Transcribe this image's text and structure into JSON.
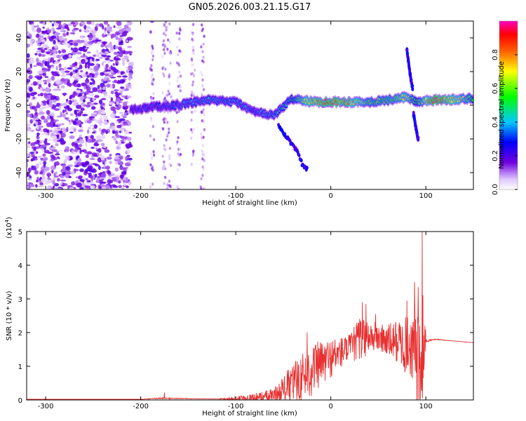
{
  "title": "GN05.2026.003.21.15.G17",
  "chart_data": [
    {
      "type": "heatmap",
      "name": "spectrogram",
      "xlabel": "Height of straight line (km)",
      "ylabel": "Frequency (Hz)",
      "xlim": [
        -320,
        150
      ],
      "ylim": [
        -50,
        50
      ],
      "xticks": [
        -300,
        -200,
        -100,
        0,
        100
      ],
      "yticks": [
        -40,
        -20,
        0,
        20,
        40
      ],
      "colorbar": {
        "label": "Normalized spectral amplitude",
        "range": [
          0.0,
          1.0
        ],
        "ticks": [
          0.0,
          0.2,
          0.4,
          0.6,
          0.8
        ],
        "tick_labels": [
          "0.0",
          "0.2",
          "0.4",
          "0.6",
          "0.8"
        ],
        "colors": [
          "#ffffff",
          "#7000e0",
          "#0000ff",
          "#00c0ff",
          "#00ff00",
          "#ffff00",
          "#ff6000",
          "#ff0000",
          "#ff00c0"
        ]
      },
      "ridge": {
        "x": [
          -210,
          -190,
          -160,
          -130,
          -100,
          -80,
          -60,
          -40,
          -20,
          0,
          20,
          40,
          60,
          80,
          90,
          110,
          150
        ],
        "freq": [
          -3,
          -1,
          0,
          3,
          2,
          -4,
          -6,
          4,
          2,
          2,
          2,
          2,
          3,
          5,
          2,
          3,
          4
        ],
        "amplitude": [
          0.3,
          0.3,
          0.35,
          0.4,
          0.4,
          0.35,
          0.4,
          0.5,
          0.8,
          0.9,
          0.8,
          0.6,
          0.6,
          0.7,
          0.5,
          0.95,
          0.55
        ]
      },
      "branches": [
        {
          "x": [
            -55,
            -45,
            -35,
            -30,
            -25
          ],
          "freq": [
            -12,
            -20,
            -28,
            -35,
            -38
          ]
        },
        {
          "x": [
            80,
            83,
            86
          ],
          "freq": [
            33,
            20,
            10
          ]
        },
        {
          "x": [
            87,
            90,
            92
          ],
          "freq": [
            -5,
            -15,
            -20
          ]
        }
      ],
      "noise_region_x": [
        -320,
        -210
      ]
    },
    {
      "type": "line",
      "name": "snr",
      "xlabel": "Height of straight line (km)",
      "ylabel": "SNR (10 * v/v)",
      "scale_label": "(x10",
      "scale_exp": "4",
      "scale_close": ")",
      "xlim": [
        -320,
        150
      ],
      "ylim": [
        0,
        5
      ],
      "xticks": [
        -300,
        -200,
        -100,
        0,
        100
      ],
      "yticks": [
        0,
        1,
        2,
        3,
        4,
        5
      ],
      "color": "#e83030",
      "envelope": {
        "x": [
          -320,
          -200,
          -180,
          -120,
          -100,
          -80,
          -60,
          -40,
          -20,
          0,
          20,
          30,
          40,
          50,
          60,
          70,
          80,
          85,
          90,
          95,
          98,
          100,
          110,
          130,
          150
        ],
        "base": [
          0.02,
          0.02,
          0.05,
          0.03,
          0.04,
          0.08,
          0.1,
          0.5,
          0.9,
          1.25,
          1.55,
          1.8,
          1.9,
          1.85,
          1.75,
          1.75,
          1.6,
          1.6,
          1.3,
          0.6,
          1.5,
          1.75,
          1.8,
          1.75,
          1.7
        ],
        "spread": [
          0.0,
          0.0,
          0.02,
          0.0,
          0.06,
          0.12,
          0.25,
          0.6,
          0.8,
          0.6,
          0.4,
          0.7,
          0.5,
          0.45,
          0.5,
          0.65,
          0.9,
          1.0,
          1.4,
          1.8,
          2.2,
          0.05,
          0.02,
          0.0,
          0.0
        ]
      },
      "peaks": [
        {
          "x": -175,
          "y": 0.22
        },
        {
          "x": -25,
          "y": 2.0
        },
        {
          "x": 33,
          "y": 2.9
        },
        {
          "x": 37,
          "y": 2.85
        },
        {
          "x": 47,
          "y": 2.55
        },
        {
          "x": 80,
          "y": 2.95
        },
        {
          "x": 88,
          "y": 3.5
        },
        {
          "x": 92,
          "y": 3.35
        },
        {
          "x": 96,
          "y": 5.0
        }
      ]
    }
  ]
}
